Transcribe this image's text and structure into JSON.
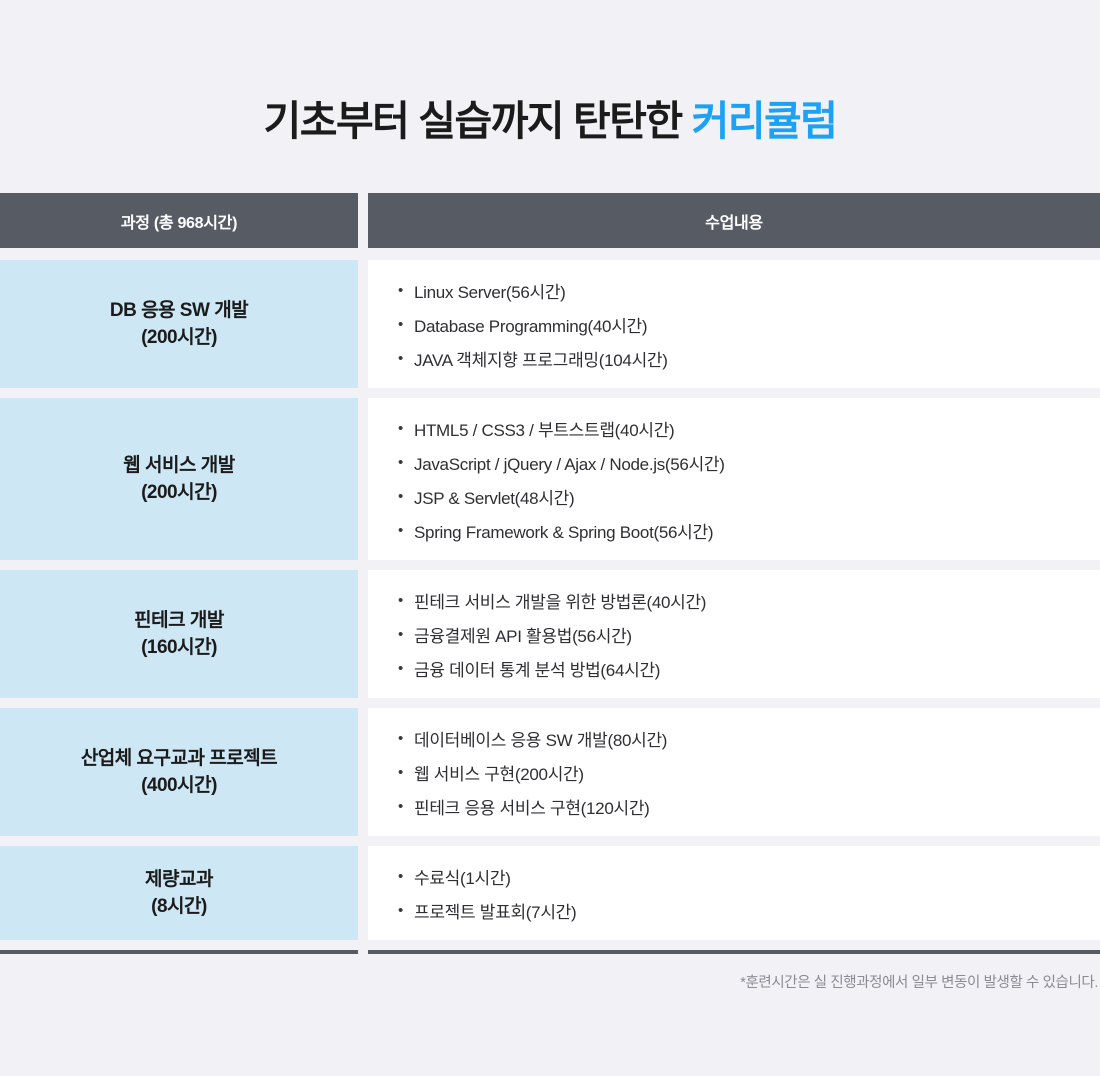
{
  "title": {
    "prefix": "기초부터 실습까지 탄탄한 ",
    "highlight": "커리큘럼"
  },
  "colors": {
    "page_bg": "#F1F1F6",
    "header_bg": "#565B64",
    "course_cell_bg": "#CDE7F5",
    "accent": "#1CA1F4"
  },
  "bullet_icon": "•",
  "table": {
    "course_header": "과정 (총 968시간)",
    "content_header": "수업내용",
    "rows": [
      {
        "course": "DB 응용 SW 개발",
        "hours": "(200시간)",
        "items": [
          "Linux Server(56시간)",
          "Database Programming(40시간)",
          "JAVA 객체지향 프로그래밍(104시간)"
        ]
      },
      {
        "course": "웹 서비스 개발",
        "hours": "(200시간)",
        "items": [
          "HTML5 / CSS3 / 부트스트랩(40시간)",
          "JavaScript / jQuery / Ajax / Node.js(56시간)",
          "JSP & Servlet(48시간)",
          "Spring Framework & Spring Boot(56시간)"
        ]
      },
      {
        "course": "핀테크 개발",
        "hours": "(160시간)",
        "items": [
          "핀테크 서비스 개발을 위한 방법론(40시간)",
          "금융결제원 API 활용법(56시간)",
          "금융 데이터 통계 분석 방법(64시간)"
        ]
      },
      {
        "course": "산업체 요구교과 프로젝트",
        "hours": "(400시간)",
        "items": [
          "데이터베이스 응용 SW 개발(80시간)",
          "웹 서비스 구현(200시간)",
          "핀테크 응용 서비스 구현(120시간)"
        ]
      },
      {
        "course": "제량교과",
        "hours": "(8시간)",
        "items": [
          "수료식(1시간)",
          "프로젝트 발표회(7시간)"
        ]
      }
    ]
  },
  "footnote": "*훈련시간은 실 진행과정에서 일부 변동이 발생할 수 있습니다."
}
